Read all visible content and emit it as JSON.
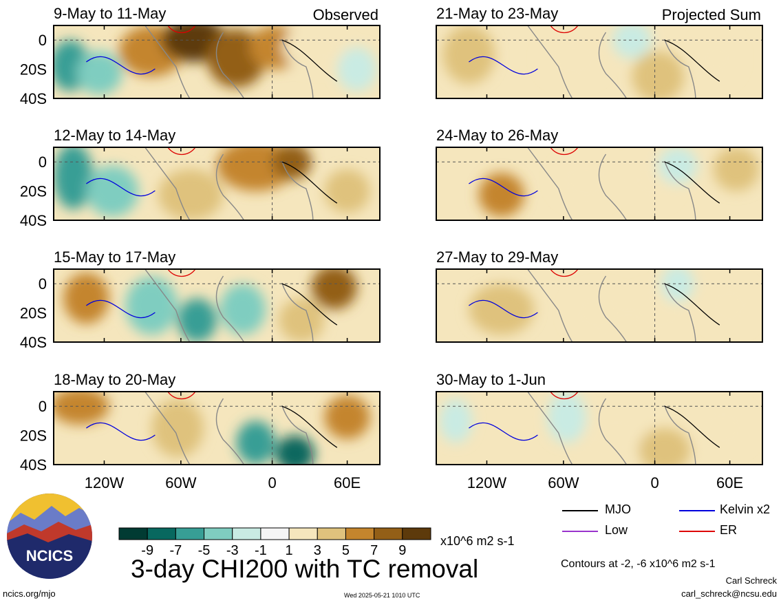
{
  "chart_data": {
    "type": "heatmap",
    "title": "3-day CHI200 with TC removal",
    "column_titles": [
      "Observed",
      "Projected Sum"
    ],
    "x_ticks": [
      "120W",
      "60W",
      "0",
      "60E"
    ],
    "y_ticks": [
      "0",
      "20S",
      "40S"
    ],
    "panels_observed": [
      {
        "period": "9-May to 11-May",
        "column": "Observed"
      },
      {
        "period": "12-May to 14-May",
        "column": "Observed"
      },
      {
        "period": "15-May to 17-May",
        "column": "Observed"
      },
      {
        "period": "18-May to 20-May",
        "column": "Observed"
      }
    ],
    "panels_projected": [
      {
        "period": "21-May to 23-May",
        "column": "Projected Sum"
      },
      {
        "period": "24-May to 26-May",
        "column": "Projected Sum"
      },
      {
        "period": "27-May to 29-May",
        "column": "Projected Sum"
      },
      {
        "period": "30-May to 1-Jun",
        "column": "Projected Sum"
      }
    ],
    "colorbar": {
      "ticks": [
        "-9",
        "-7",
        "-5",
        "-3",
        "-1",
        "1",
        "3",
        "5",
        "7",
        "9"
      ],
      "colors": [
        "#013b33",
        "#08685f",
        "#379e95",
        "#7fcdc0",
        "#c9ebe3",
        "#f5f5f5",
        "#f5e6bd",
        "#dfc27d",
        "#c4852d",
        "#935f17",
        "#5d3a0b"
      ],
      "units": "x10^6 m2 s-1"
    },
    "legend": [
      {
        "label": "MJO",
        "color": "#000000"
      },
      {
        "label": "Kelvin x2",
        "color": "#0000dd"
      },
      {
        "label": "Low",
        "color": "#9933cc"
      },
      {
        "label": "ER",
        "color": "#dd0000"
      }
    ],
    "contours_note": "Contours at -2, -6 x10^6 m2 s-1"
  },
  "footer": {
    "left": "ncics.org/mjo",
    "timestamp": "Wed 2025-05-21 1010 UTC",
    "author": "Carl Schreck",
    "email": "carl_schreck@ncsu.edu"
  },
  "logo_text": "NCICS"
}
